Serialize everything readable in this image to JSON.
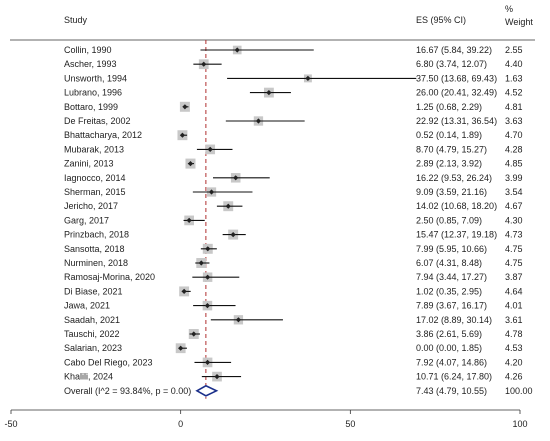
{
  "chart_data": {
    "type": "forest",
    "headers": {
      "study": "Study",
      "es": "ES (95% CI)",
      "weight_top": "%",
      "weight": "Weight"
    },
    "xlim": [
      -50,
      100
    ],
    "ticks": [
      "-50",
      "0",
      "50",
      "100"
    ],
    "tick_values": [
      -50,
      0,
      50,
      100
    ],
    "reference_line": 7.43,
    "studies": [
      {
        "study": "Collin, 1990",
        "es": 16.67,
        "lo": 5.84,
        "hi": 39.22,
        "es_text": "16.67 (5.84, 39.22)",
        "weight": "2.55"
      },
      {
        "study": "Ascher, 1993",
        "es": 6.8,
        "lo": 3.74,
        "hi": 12.07,
        "es_text": "6.80 (3.74, 12.07)",
        "weight": "4.40"
      },
      {
        "study": "Unsworth, 1994",
        "es": 37.5,
        "lo": 13.68,
        "hi": 69.43,
        "es_text": "37.50 (13.68, 69.43)",
        "weight": "1.63"
      },
      {
        "study": "Lubrano, 1996",
        "es": 26.0,
        "lo": 20.41,
        "hi": 32.49,
        "es_text": "26.00 (20.41, 32.49)",
        "weight": "4.52"
      },
      {
        "study": "Bottaro, 1999",
        "es": 1.25,
        "lo": 0.68,
        "hi": 2.29,
        "es_text": "1.25 (0.68, 2.29)",
        "weight": "4.81"
      },
      {
        "study": "De Freitas, 2002",
        "es": 22.92,
        "lo": 13.31,
        "hi": 36.54,
        "es_text": "22.92 (13.31, 36.54)",
        "weight": "3.63"
      },
      {
        "study": "Bhattacharya, 2012",
        "es": 0.52,
        "lo": 0.14,
        "hi": 1.89,
        "es_text": "0.52 (0.14, 1.89)",
        "weight": "4.70"
      },
      {
        "study": "Mubarak, 2013",
        "es": 8.7,
        "lo": 4.79,
        "hi": 15.27,
        "es_text": "8.70 (4.79, 15.27)",
        "weight": "4.28"
      },
      {
        "study": "Zanini, 2013",
        "es": 2.89,
        "lo": 2.13,
        "hi": 3.92,
        "es_text": "2.89 (2.13, 3.92)",
        "weight": "4.85"
      },
      {
        "study": "Iagnocco, 2014",
        "es": 16.22,
        "lo": 9.53,
        "hi": 26.24,
        "es_text": "16.22 (9.53, 26.24)",
        "weight": "3.99"
      },
      {
        "study": "Sherman, 2015",
        "es": 9.09,
        "lo": 3.59,
        "hi": 21.16,
        "es_text": "9.09 (3.59, 21.16)",
        "weight": "3.54"
      },
      {
        "study": "Jericho, 2017",
        "es": 14.02,
        "lo": 10.68,
        "hi": 18.2,
        "es_text": "14.02 (10.68, 18.20)",
        "weight": "4.67"
      },
      {
        "study": "Garg, 2017",
        "es": 2.5,
        "lo": 0.85,
        "hi": 7.09,
        "es_text": "2.50 (0.85, 7.09)",
        "weight": "4.30"
      },
      {
        "study": "Prinzbach, 2018",
        "es": 15.47,
        "lo": 12.37,
        "hi": 19.18,
        "es_text": "15.47 (12.37, 19.18)",
        "weight": "4.73"
      },
      {
        "study": "Sansotta, 2018",
        "es": 7.99,
        "lo": 5.95,
        "hi": 10.66,
        "es_text": "7.99 (5.95, 10.66)",
        "weight": "4.75"
      },
      {
        "study": "Nurminen, 2018",
        "es": 6.07,
        "lo": 4.31,
        "hi": 8.48,
        "es_text": "6.07 (4.31, 8.48)",
        "weight": "4.75"
      },
      {
        "study": "Ramosaj-Morina, 2020",
        "es": 7.94,
        "lo": 3.44,
        "hi": 17.27,
        "es_text": "7.94 (3.44, 17.27)",
        "weight": "3.87"
      },
      {
        "study": "Di Biase, 2021",
        "es": 1.02,
        "lo": 0.35,
        "hi": 2.95,
        "es_text": "1.02 (0.35, 2.95)",
        "weight": "4.64"
      },
      {
        "study": "Jawa, 2021",
        "es": 7.89,
        "lo": 3.67,
        "hi": 16.17,
        "es_text": "7.89 (3.67, 16.17)",
        "weight": "4.01"
      },
      {
        "study": "Saadah, 2021",
        "es": 17.02,
        "lo": 8.89,
        "hi": 30.14,
        "es_text": "17.02 (8.89, 30.14)",
        "weight": "3.61"
      },
      {
        "study": "Tauschi, 2022",
        "es": 3.86,
        "lo": 2.61,
        "hi": 5.69,
        "es_text": "3.86 (2.61, 5.69)",
        "weight": "4.78"
      },
      {
        "study": "Salarian, 2023",
        "es": 0.0,
        "lo": 0.0,
        "hi": 1.85,
        "es_text": "0.00 (0.00, 1.85)",
        "weight": "4.53"
      },
      {
        "study": "Cabo Del Riego, 2023",
        "es": 7.92,
        "lo": 4.07,
        "hi": 14.86,
        "es_text": "7.92 (4.07, 14.86)",
        "weight": "4.20"
      },
      {
        "study": "Khalili, 2024",
        "es": 10.71,
        "lo": 6.24,
        "hi": 17.8,
        "es_text": "10.71 (6.24, 17.80)",
        "weight": "4.26"
      }
    ],
    "overall": {
      "study": "Overall  (I^2 = 93.84%, p = 0.00)",
      "es": 7.43,
      "lo": 4.79,
      "hi": 10.55,
      "es_text": "7.43 (4.79, 10.55)",
      "weight": "100.00"
    },
    "colors": {
      "box": "#c8c8c8",
      "point": "#222222",
      "ci": "#111111",
      "reference": "#b03030",
      "diamond": "#1b2f8a",
      "axis": "#333333"
    }
  }
}
